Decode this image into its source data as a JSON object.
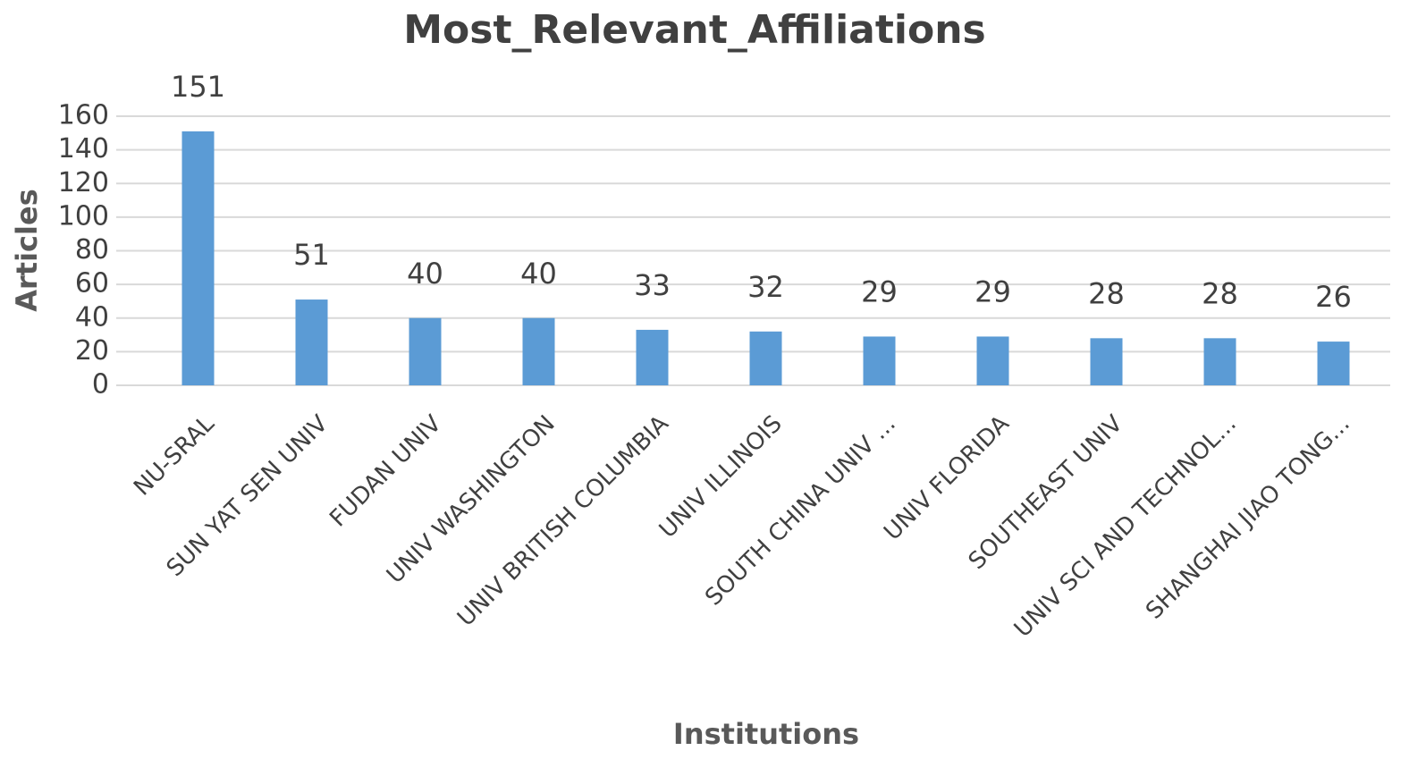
{
  "chart_data": {
    "type": "bar",
    "title": "Most_Relevant_Affiliations",
    "x_label": "Institutions",
    "y_label": "Articles",
    "categories": [
      "NU-SRAL",
      "SUN YAT SEN UNIV",
      "FUDAN UNIV",
      "UNIV WASHINGTON",
      "UNIV BRITISH COLUMBIA",
      "UNIV ILLINOIS",
      "SOUTH CHINA UNIV ...",
      "UNIV FLORIDA",
      "SOUTHEAST UNIV",
      "UNIV SCI AND TECHNOL...",
      "SHANGHAI JIAO TONG..."
    ],
    "values": [
      151,
      51,
      40,
      40,
      33,
      32,
      29,
      29,
      28,
      28,
      26
    ],
    "color": "#5b9bd5",
    "ylim": [
      0,
      160
    ],
    "yticks": [
      0,
      20,
      40,
      60,
      80,
      100,
      120,
      140,
      160
    ],
    "grid": true
  }
}
